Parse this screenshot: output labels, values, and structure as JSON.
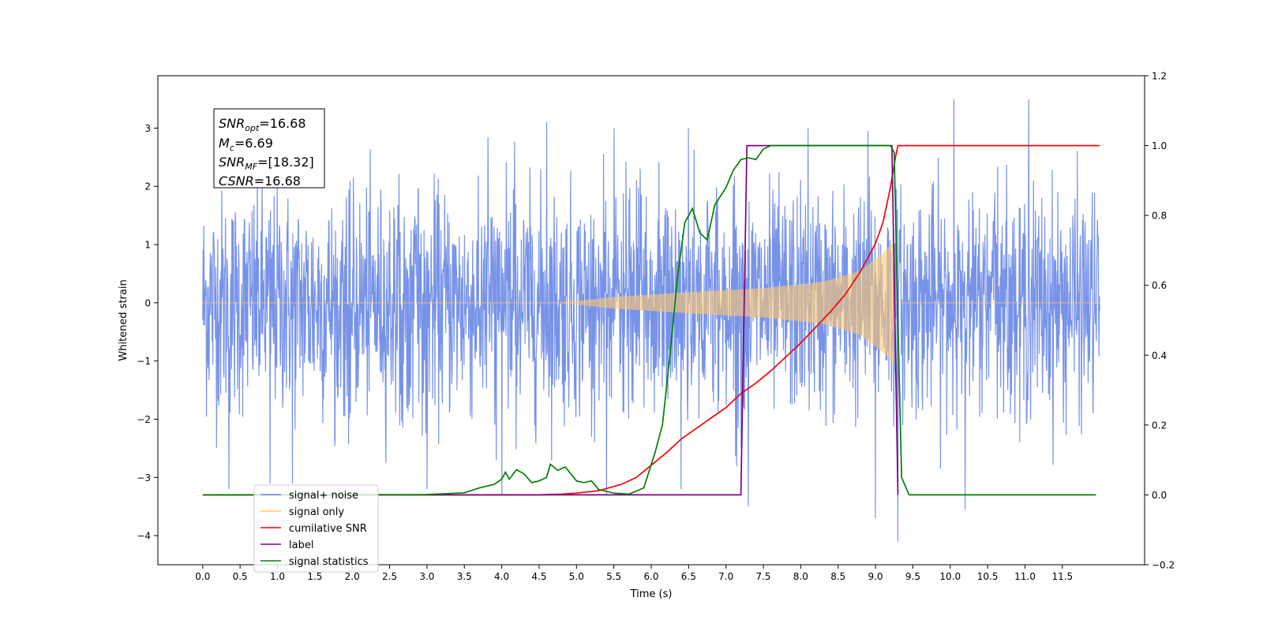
{
  "chart_data": {
    "type": "line",
    "xlabel": "Time (s)",
    "ylabel": "Whitened strain",
    "xlim": [
      -0.6,
      12.6
    ],
    "ylim": [
      -4.5,
      3.9
    ],
    "y2lim": [
      -0.2,
      1.2
    ],
    "grid": false,
    "legend_position": "lower-left",
    "x_ticks": [
      "0.0",
      "0.5",
      "1.0",
      "1.5",
      "2.0",
      "2.5",
      "3.0",
      "3.5",
      "4.0",
      "4.5",
      "5.0",
      "5.5",
      "6.0",
      "6.5",
      "7.0",
      "7.5",
      "8.0",
      "8.5",
      "9.0",
      "9.5",
      "10.0",
      "10.5",
      "11.0",
      "11.5"
    ],
    "y_ticks": [
      "3",
      "2",
      "1",
      "0",
      "−1",
      "−2",
      "−3",
      "−4"
    ],
    "y2_ticks": [
      "1.2",
      "1.0",
      "0.8",
      "0.6",
      "0.4",
      "0.2",
      "0.0",
      "−0.2"
    ],
    "info_box": {
      "snr_opt_sym": "SNR",
      "snr_opt_sub": "opt",
      "snr_opt_val": "=16.68",
      "mc_sym": "M",
      "mc_sub": "c",
      "mc_val": "=6.69",
      "snr_mf_sym": "SNR",
      "snr_mf_sub": "MF",
      "snr_mf_val": "=[18.32]",
      "csnr_sym": "CSNR",
      "csnr_val": "=16.68"
    },
    "legend": [
      {
        "label": "signal+ noise",
        "color": "#6b8ae6"
      },
      {
        "label": "signal only",
        "color": "#ffc870"
      },
      {
        "label": "cumilative SNR",
        "color": "#ff0000"
      },
      {
        "label": "label",
        "color": "#800080"
      },
      {
        "label": "signal statistics",
        "color": "#008000"
      }
    ],
    "series": [
      {
        "name": "signal+ noise",
        "axis": "left",
        "color": "#6b8ae6",
        "t_start": 0.0,
        "t_end": 12.0,
        "noise_sigma": 1.0,
        "spikes": [
          [
            0.35,
            -3.2
          ],
          [
            0.9,
            -3.1
          ],
          [
            1.2,
            -3.1
          ],
          [
            3.0,
            -3.2
          ],
          [
            4.0,
            -3.3
          ],
          [
            4.6,
            3.1
          ],
          [
            5.4,
            -3.3
          ],
          [
            6.4,
            -3.2
          ],
          [
            7.3,
            -3.5
          ],
          [
            9.0,
            -3.7
          ],
          [
            9.3,
            -4.1
          ],
          [
            10.05,
            3.5
          ],
          [
            10.2,
            -3.55
          ],
          [
            11.05,
            3.5
          ],
          [
            5.5,
            3.0
          ],
          [
            6.5,
            3.0
          ],
          [
            8.1,
            3.0
          ],
          [
            8.9,
            2.95
          ]
        ]
      },
      {
        "name": "signal only",
        "axis": "left",
        "color": "#ffc870",
        "t_start": 0.0,
        "t_end": 12.0,
        "chirp_start": 4.8,
        "chirp_merger": 9.25,
        "envelope": [
          [
            4.8,
            0.0
          ],
          [
            5.5,
            0.1
          ],
          [
            6.5,
            0.18
          ],
          [
            7.5,
            0.25
          ],
          [
            8.3,
            0.36
          ],
          [
            8.8,
            0.55
          ],
          [
            9.1,
            0.85
          ],
          [
            9.25,
            1.05
          ]
        ]
      },
      {
        "name": "cumilative SNR",
        "axis": "right",
        "color": "#ff0000",
        "points": [
          [
            0.0,
            0.0
          ],
          [
            4.5,
            0.0
          ],
          [
            4.8,
            0.002
          ],
          [
            5.0,
            0.005
          ],
          [
            5.3,
            0.012
          ],
          [
            5.6,
            0.03
          ],
          [
            5.8,
            0.05
          ],
          [
            6.0,
            0.085
          ],
          [
            6.2,
            0.12
          ],
          [
            6.4,
            0.16
          ],
          [
            6.6,
            0.19
          ],
          [
            6.8,
            0.22
          ],
          [
            7.0,
            0.25
          ],
          [
            7.2,
            0.29
          ],
          [
            7.4,
            0.32
          ],
          [
            7.6,
            0.355
          ],
          [
            7.8,
            0.395
          ],
          [
            8.0,
            0.435
          ],
          [
            8.2,
            0.48
          ],
          [
            8.4,
            0.525
          ],
          [
            8.6,
            0.575
          ],
          [
            8.8,
            0.64
          ],
          [
            9.0,
            0.72
          ],
          [
            9.1,
            0.78
          ],
          [
            9.2,
            0.88
          ],
          [
            9.27,
            0.97
          ],
          [
            9.3,
            1.0
          ],
          [
            12.0,
            1.0
          ]
        ]
      },
      {
        "name": "label",
        "axis": "right",
        "color": "#800080",
        "points": [
          [
            0.0,
            0.0
          ],
          [
            7.2,
            0.0
          ],
          [
            7.28,
            1.0
          ],
          [
            9.22,
            1.0
          ],
          [
            9.3,
            0.0
          ],
          [
            9.3,
            0.0
          ]
        ]
      },
      {
        "name": "signal statistics",
        "axis": "right",
        "color": "#008000",
        "points": [
          [
            0.0,
            0.0
          ],
          [
            3.0,
            0.001
          ],
          [
            3.3,
            0.004
          ],
          [
            3.5,
            0.006
          ],
          [
            3.7,
            0.02
          ],
          [
            3.9,
            0.03
          ],
          [
            4.0,
            0.045
          ],
          [
            4.05,
            0.065
          ],
          [
            4.1,
            0.045
          ],
          [
            4.2,
            0.072
          ],
          [
            4.3,
            0.06
          ],
          [
            4.4,
            0.035
          ],
          [
            4.5,
            0.04
          ],
          [
            4.6,
            0.05
          ],
          [
            4.65,
            0.088
          ],
          [
            4.75,
            0.07
          ],
          [
            4.85,
            0.08
          ],
          [
            5.0,
            0.04
          ],
          [
            5.1,
            0.035
          ],
          [
            5.2,
            0.04
          ],
          [
            5.3,
            0.015
          ],
          [
            5.5,
            0.005
          ],
          [
            5.7,
            0.002
          ],
          [
            5.9,
            0.02
          ],
          [
            6.05,
            0.12
          ],
          [
            6.15,
            0.2
          ],
          [
            6.25,
            0.4
          ],
          [
            6.35,
            0.62
          ],
          [
            6.45,
            0.78
          ],
          [
            6.55,
            0.82
          ],
          [
            6.65,
            0.75
          ],
          [
            6.75,
            0.73
          ],
          [
            6.85,
            0.83
          ],
          [
            7.0,
            0.88
          ],
          [
            7.1,
            0.93
          ],
          [
            7.2,
            0.96
          ],
          [
            7.3,
            0.965
          ],
          [
            7.4,
            0.96
          ],
          [
            7.5,
            0.99
          ],
          [
            7.6,
            1.0
          ],
          [
            9.2,
            1.0
          ],
          [
            9.25,
            0.98
          ],
          [
            9.3,
            0.5
          ],
          [
            9.35,
            0.05
          ],
          [
            9.45,
            0.0
          ],
          [
            11.95,
            0.0
          ]
        ]
      }
    ]
  }
}
